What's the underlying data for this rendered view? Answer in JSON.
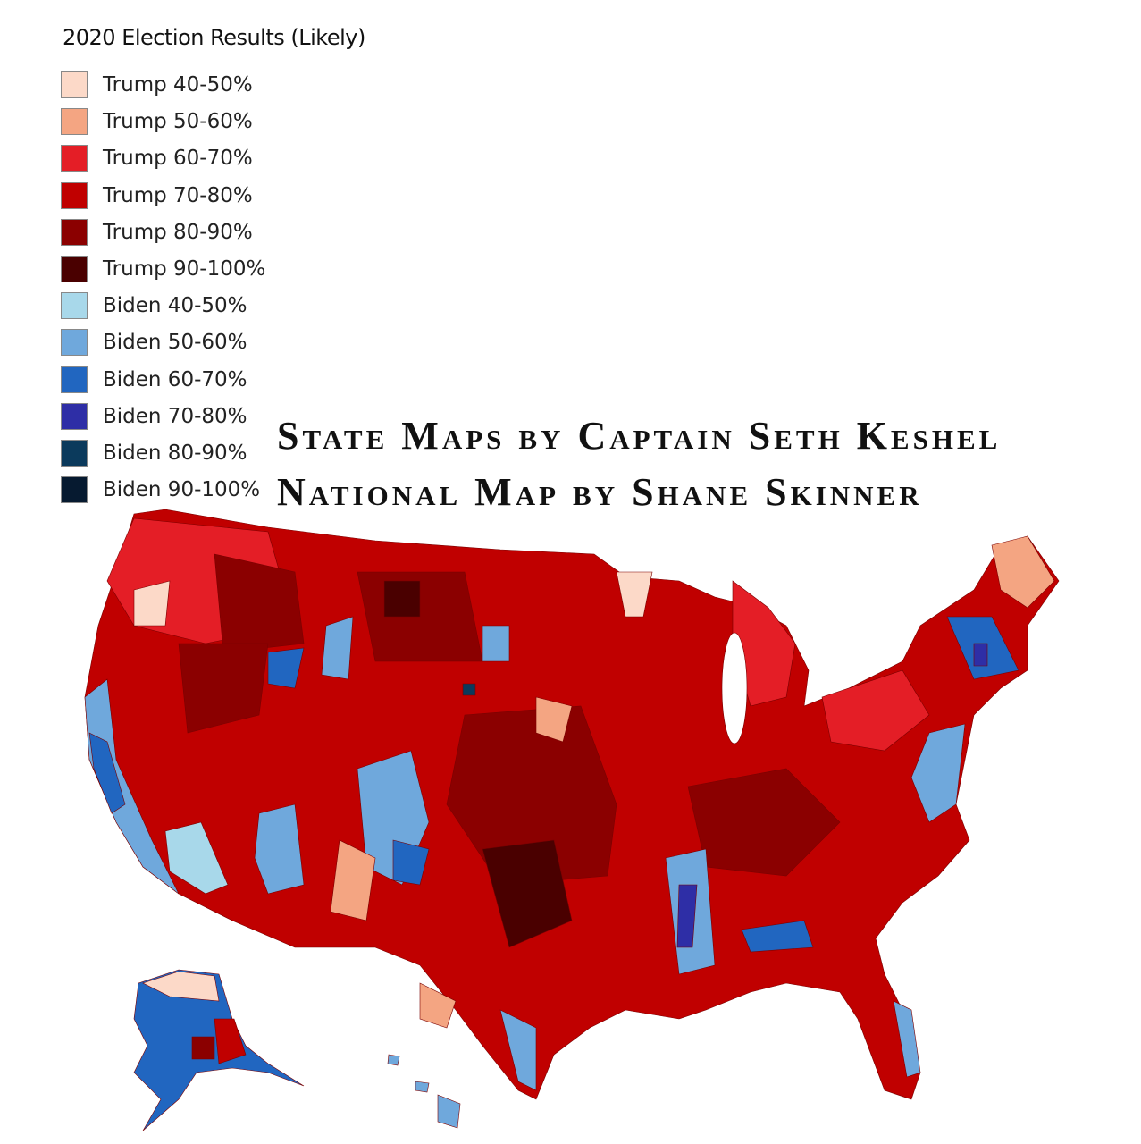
{
  "legend": {
    "title": "2020 Election Results (Likely)",
    "items": [
      {
        "label": "Trump 40-50%",
        "color": "#fcd9c8"
      },
      {
        "label": "Trump 50-60%",
        "color": "#f4a582"
      },
      {
        "label": "Trump 60-70%",
        "color": "#e41e26"
      },
      {
        "label": "Trump 70-80%",
        "color": "#c00000"
      },
      {
        "label": "Trump 80-90%",
        "color": "#8b0000"
      },
      {
        "label": "Trump 90-100%",
        "color": "#4a0000"
      },
      {
        "label": "Biden 40-50%",
        "color": "#a8d8ea"
      },
      {
        "label": "Biden 50-60%",
        "color": "#6fa8dc"
      },
      {
        "label": "Biden 60-70%",
        "color": "#2166c0"
      },
      {
        "label": "Biden 70-80%",
        "color": "#2e2ea6"
      },
      {
        "label": "Biden 80-90%",
        "color": "#0b3a5c"
      },
      {
        "label": "Biden 90-100%",
        "color": "#061a30"
      }
    ]
  },
  "credits": [
    "State Maps by Captain Seth Keshel",
    "National Map by Shane Skinner"
  ]
}
